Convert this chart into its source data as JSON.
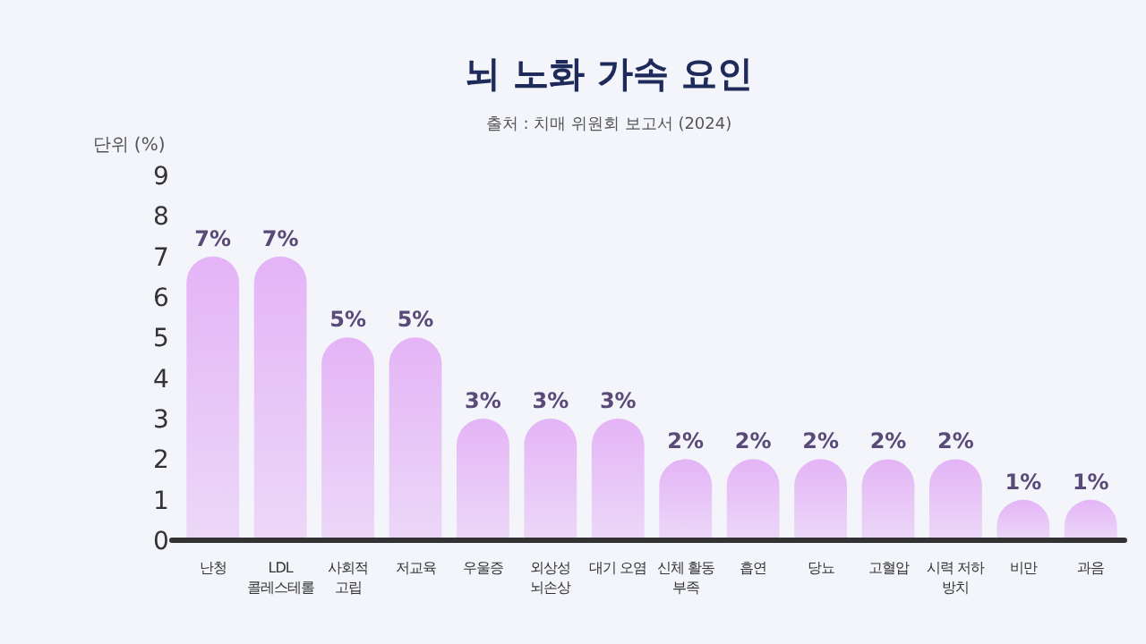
{
  "chart_data": {
    "type": "bar",
    "title": "뇌 노화 가속 요인",
    "subtitle": "출처 : 치매 위원회 보고서 (2024)",
    "ylabel": "단위 (%)",
    "categories": [
      "난청",
      "LDL\n콜레스테롤",
      "사회적\n고립",
      "저교육",
      "우울증",
      "외상성\n뇌손상",
      "대기 오염",
      "신체 활동\n부족",
      "흡연",
      "당뇨",
      "고혈압",
      "시력 저하\n방치",
      "비만",
      "과음"
    ],
    "values": [
      7,
      7,
      5,
      5,
      3,
      3,
      3,
      2,
      2,
      2,
      2,
      2,
      1,
      1
    ],
    "value_labels": [
      "7%",
      "7%",
      "5%",
      "5%",
      "3%",
      "3%",
      "3%",
      "2%",
      "2%",
      "2%",
      "2%",
      "2%",
      "1%",
      "1%"
    ],
    "color": "#e4b4f6",
    "ylim": [
      0,
      9
    ],
    "yticks": [
      0,
      1,
      2,
      3,
      4,
      5,
      6,
      7,
      8,
      9
    ],
    "grid": false
  }
}
